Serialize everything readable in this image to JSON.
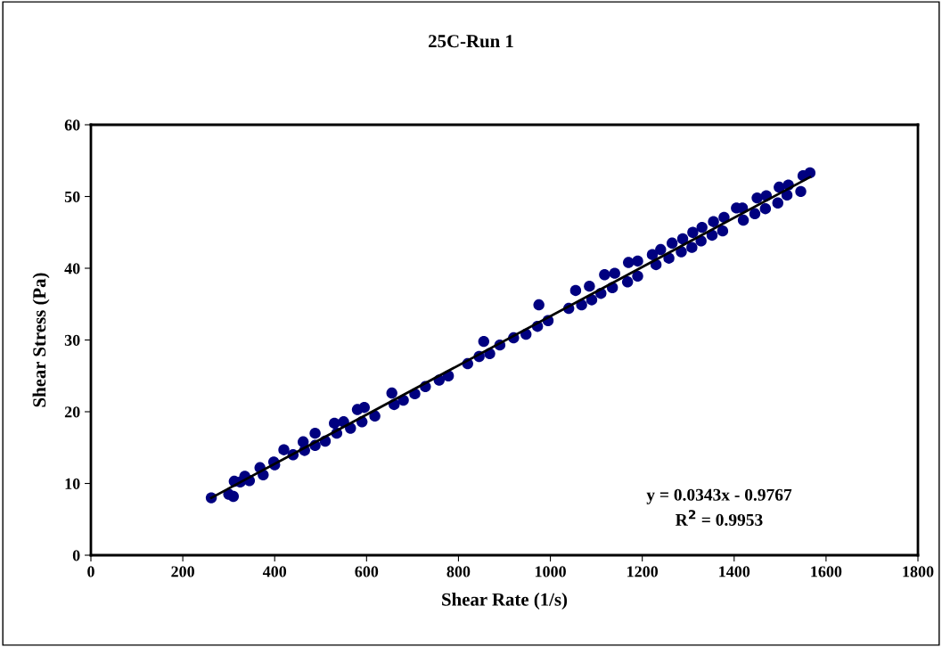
{
  "chart_data": {
    "type": "scatter",
    "title": "25C-Run 1",
    "xlabel": "Shear Rate (1/s)",
    "ylabel": "Shear Stress (Pa)",
    "xlim": [
      0,
      1800
    ],
    "xticks": [
      0,
      200,
      400,
      600,
      800,
      1000,
      1200,
      1400,
      1600,
      1800
    ],
    "ylim": [
      0,
      60
    ],
    "yticks": [
      0,
      10,
      20,
      30,
      40,
      50,
      60
    ],
    "grid": false,
    "legend": false,
    "marker": "circle",
    "annotations": [
      "y = 0.0343x - 0.9767",
      "R$^{2}$ = 0.9953"
    ],
    "series": [
      {
        "color": "#000080",
        "x": [
          262,
          300,
          310,
          312,
          325,
          335,
          345,
          368,
          375,
          398,
          400,
          420,
          440,
          462,
          465,
          488,
          488,
          510,
          530,
          535,
          550,
          565,
          580,
          590,
          595,
          618,
          655,
          660,
          680,
          705,
          728,
          758,
          778,
          820,
          845,
          855,
          868,
          890,
          920,
          947,
          972,
          975,
          995,
          1040,
          1055,
          1068,
          1085,
          1090,
          1110,
          1118,
          1135,
          1140,
          1168,
          1170,
          1190,
          1190,
          1222,
          1230,
          1240,
          1258,
          1265,
          1285,
          1288,
          1308,
          1310,
          1328,
          1330,
          1352,
          1355,
          1375,
          1378,
          1405,
          1418,
          1420,
          1445,
          1450,
          1468,
          1470,
          1495,
          1498,
          1515,
          1518,
          1545,
          1550,
          1565
        ],
        "values": [
          8.0,
          8.5,
          8.2,
          10.3,
          10.2,
          11.0,
          10.4,
          12.2,
          11.2,
          13.0,
          12.6,
          14.7,
          14.0,
          15.8,
          14.6,
          17.0,
          15.3,
          15.9,
          18.4,
          17.0,
          18.6,
          17.7,
          20.3,
          18.6,
          20.6,
          19.4,
          22.6,
          21.0,
          21.6,
          22.5,
          23.5,
          24.4,
          25.0,
          26.7,
          27.7,
          29.8,
          28.1,
          29.3,
          30.3,
          30.8,
          31.9,
          34.9,
          32.7,
          34.4,
          36.9,
          34.9,
          37.5,
          35.6,
          36.5,
          39.1,
          37.3,
          39.3,
          38.1,
          40.8,
          38.9,
          41.0,
          41.9,
          40.5,
          42.6,
          41.4,
          43.5,
          42.3,
          44.1,
          42.9,
          45.0,
          43.8,
          45.7,
          44.6,
          46.5,
          45.2,
          47.1,
          48.4,
          48.4,
          46.7,
          47.6,
          49.8,
          48.3,
          50.1,
          49.1,
          51.3,
          50.2,
          51.6,
          50.7,
          52.9,
          53.3
        ]
      },
      {
        "type": "line",
        "color": "#000000",
        "line_style": "solid",
        "marker": "none",
        "x": [
          262,
          1565
        ],
        "values": [
          8.0,
          52.7
        ]
      }
    ]
  }
}
